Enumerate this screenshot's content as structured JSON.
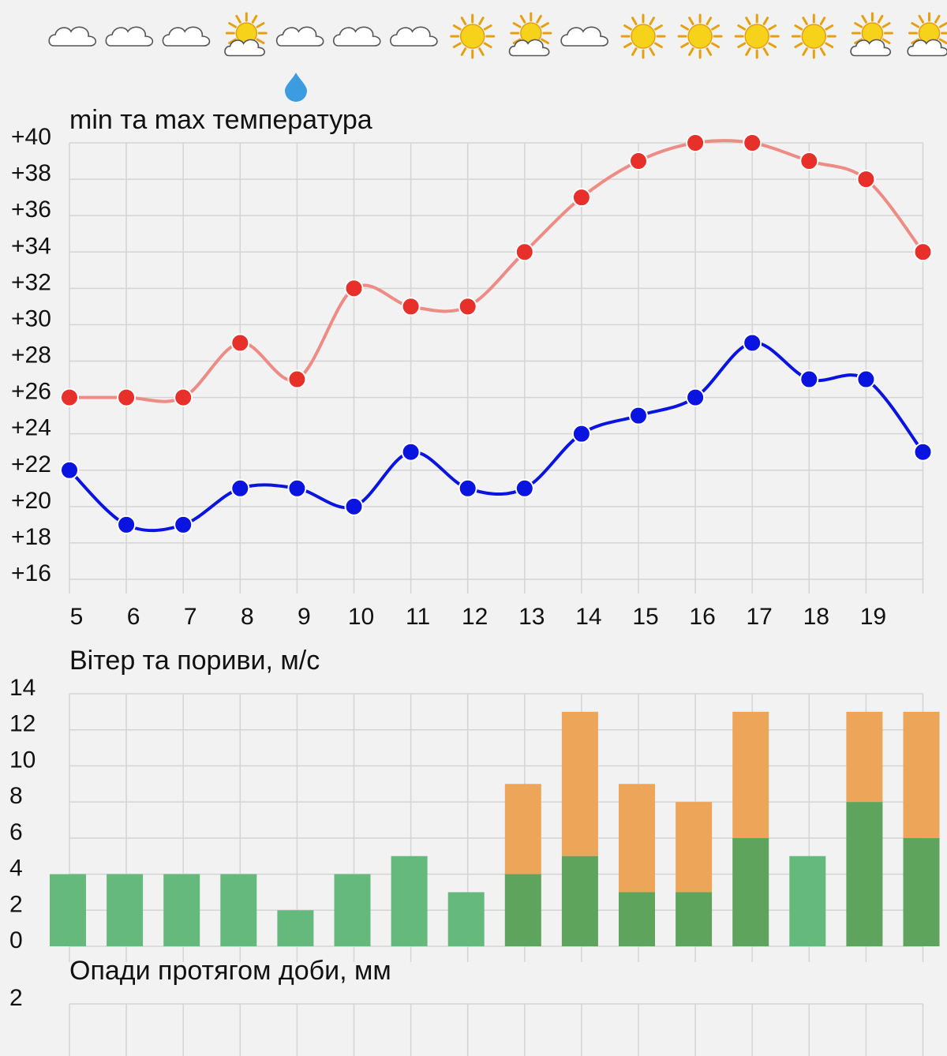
{
  "chart_data": [
    {
      "type": "line",
      "title": "min та max температура",
      "categories": [
        "5",
        "6",
        "7",
        "8",
        "9",
        "10",
        "11",
        "12",
        "13",
        "14",
        "15",
        "16",
        "17",
        "18",
        "19",
        ""
      ],
      "series": [
        {
          "values": [
            26,
            26,
            26,
            29,
            27,
            32,
            31,
            31,
            34,
            37,
            39,
            40,
            40,
            39,
            38,
            34
          ],
          "color": "#e8302a",
          "line_color": "#ee8b84"
        },
        {
          "values": [
            22,
            19,
            19,
            21,
            21,
            20,
            23,
            21,
            21,
            24,
            25,
            26,
            29,
            27,
            27,
            23
          ],
          "color": "#0a14e0",
          "line_color": "#0a14e0"
        }
      ],
      "yticks": [
        "+40",
        "+38",
        "+36",
        "+34",
        "+32",
        "+30",
        "+28",
        "+26",
        "+24",
        "+22",
        "+20",
        "+18",
        "+16"
      ],
      "ylim": [
        16,
        40
      ],
      "grid": true
    },
    {
      "type": "bar",
      "title": "Вітер та пориви, м/с",
      "categories": [
        "5",
        "6",
        "7",
        "8",
        "9",
        "10",
        "11",
        "12",
        "13",
        "14",
        "15",
        "16",
        "17",
        "18",
        "19",
        ""
      ],
      "series": [
        {
          "values": [
            4,
            4,
            4,
            4,
            2,
            4,
            5,
            3,
            4,
            5,
            3,
            3,
            6,
            5,
            8,
            6
          ],
          "color_light": "#66b97d",
          "color_dark": "#5ea45c"
        },
        {
          "values": [
            null,
            null,
            null,
            null,
            null,
            null,
            null,
            null,
            9,
            13,
            9,
            8,
            13,
            null,
            13,
            13
          ],
          "color": "#eda55a"
        }
      ],
      "yticks": [
        "14",
        "12",
        "10",
        "8",
        "6",
        "4",
        "2",
        "0"
      ],
      "ylim": [
        0,
        14
      ],
      "grid": true
    },
    {
      "type": "bar",
      "title": "Опади протягом доби, мм",
      "yticks": [
        "2"
      ],
      "values": [],
      "grid": true
    }
  ],
  "weather_icons": [
    "cloud-icon",
    "cloud-icon",
    "cloud-icon",
    "partly-sunny-icon",
    "cloud-icon",
    "cloud-icon",
    "cloud-icon",
    "sun-icon",
    "partly-sunny-icon",
    "cloud-icon",
    "sun-icon",
    "sun-icon",
    "sun-icon",
    "sun-icon",
    "partly-sunny-icon",
    "partly-sunny-icon"
  ],
  "rain_day_index": 4,
  "colors": {
    "sun": "#f7d21a",
    "sun_edge": "#e6a00f",
    "rain": "#3d9ce0",
    "cloud_stroke": "#555555"
  }
}
